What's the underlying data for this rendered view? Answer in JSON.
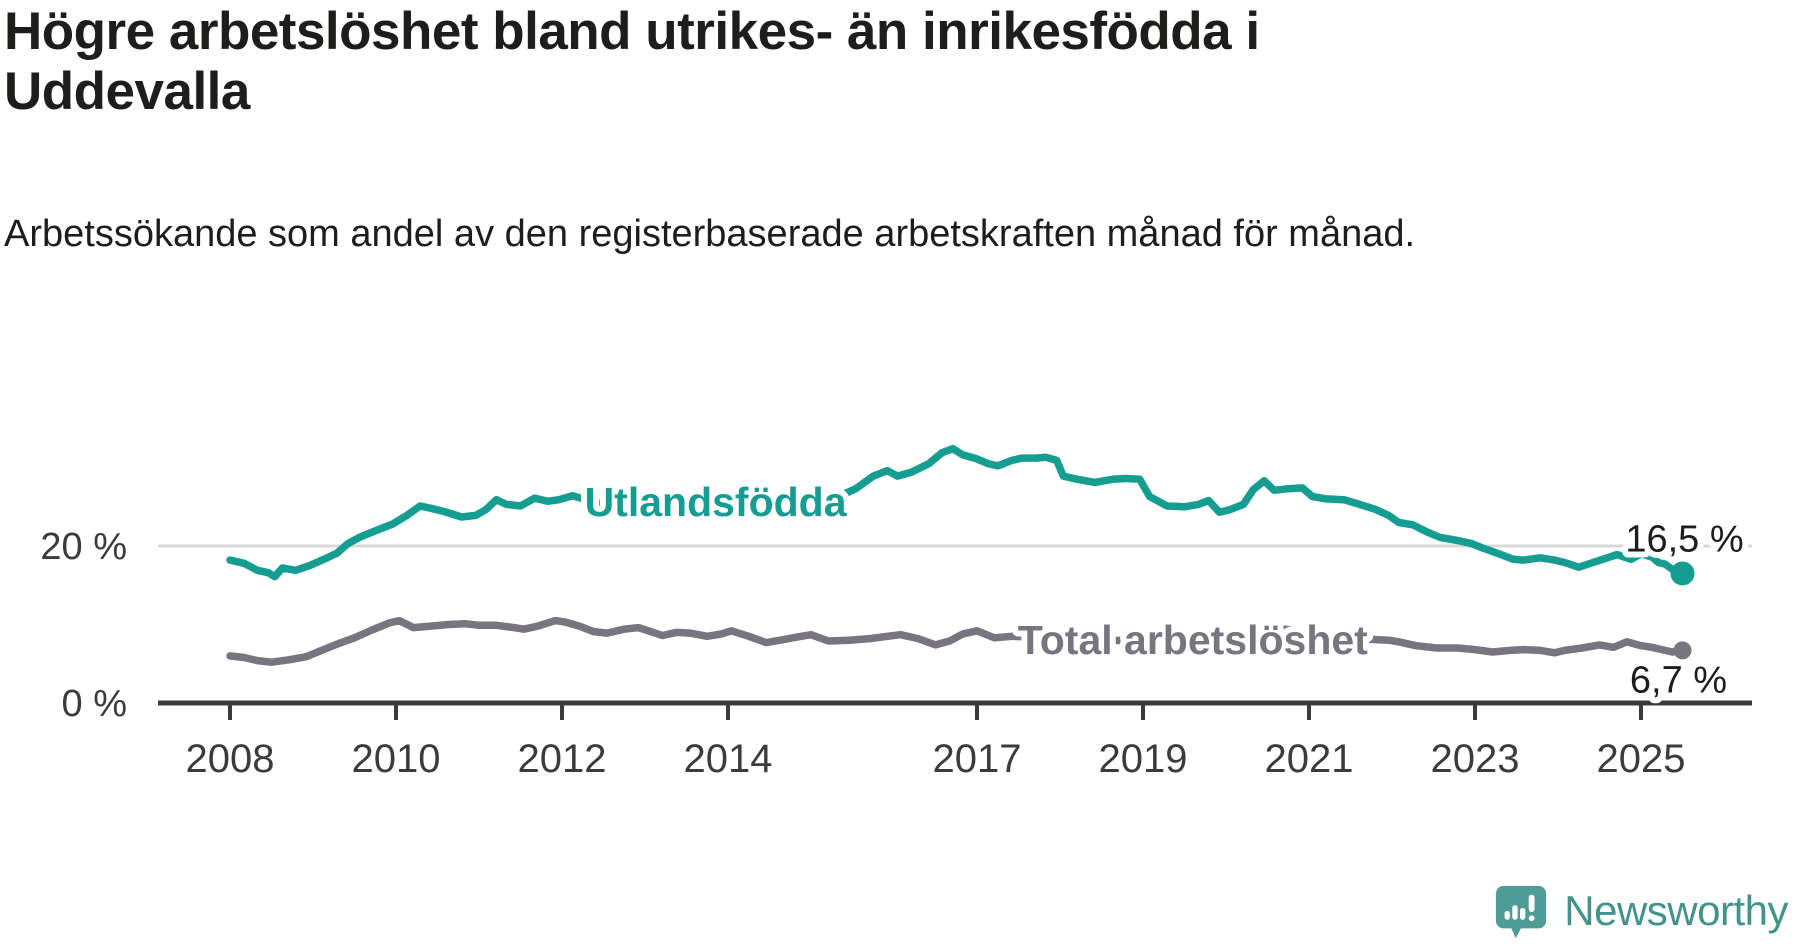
{
  "header": {
    "title": "Högre arbetslöshet bland utrikes- än inrikesfödda i Uddevalla",
    "subtitle": "Arbetssökande som andel av den registerbaserade arbetskraften månad för månad."
  },
  "chart_data": {
    "type": "line",
    "title": "Högre arbetslöshet bland utrikes- än inrikesfödda i Uddevalla",
    "subtitle": "Arbetssökande som andel av den registerbaserade arbetskraften månad för månad.",
    "xlabel": "",
    "ylabel": "",
    "x_unit": "year (monthly observations)",
    "y_unit": "%",
    "xlim": [
      2007.35,
      2026.3
    ],
    "ylim": [
      0,
      34
    ],
    "x_ticks": [
      2008,
      2010,
      2012,
      2014,
      2017,
      2019,
      2021,
      2023,
      2025
    ],
    "y_ticks": [
      {
        "value": 0,
        "label": "0 %"
      },
      {
        "value": 20,
        "label": "20 %"
      }
    ],
    "grid_values": [
      20
    ],
    "legend_position": "inline-labels",
    "series": [
      {
        "name": "Utlandsfödda",
        "color": "#169d92",
        "end_label": "16,5 %",
        "end_value": 16.5,
        "label_at": [
          2013.85,
          25.6
        ],
        "points": [
          [
            2008.0,
            18.2
          ],
          [
            2008.17,
            17.8
          ],
          [
            2008.33,
            16.9
          ],
          [
            2008.46,
            16.6
          ],
          [
            2008.54,
            16.1
          ],
          [
            2008.63,
            17.2
          ],
          [
            2008.79,
            16.9
          ],
          [
            2008.96,
            17.5
          ],
          [
            2009.13,
            18.3
          ],
          [
            2009.29,
            19.1
          ],
          [
            2009.42,
            20.3
          ],
          [
            2009.58,
            21.2
          ],
          [
            2009.79,
            22.1
          ],
          [
            2009.96,
            22.8
          ],
          [
            2010.13,
            23.9
          ],
          [
            2010.29,
            25.1
          ],
          [
            2010.42,
            24.8
          ],
          [
            2010.58,
            24.4
          ],
          [
            2010.79,
            23.7
          ],
          [
            2010.96,
            23.9
          ],
          [
            2011.08,
            24.6
          ],
          [
            2011.21,
            25.9
          ],
          [
            2011.33,
            25.3
          ],
          [
            2011.5,
            25.1
          ],
          [
            2011.67,
            26.1
          ],
          [
            2011.83,
            25.7
          ],
          [
            2011.96,
            25.9
          ],
          [
            2012.13,
            26.4
          ],
          [
            2012.29,
            25.9
          ],
          [
            2012.5,
            25.3
          ],
          [
            2012.71,
            24.9
          ],
          [
            2012.92,
            25.2
          ],
          [
            2013.13,
            24.6
          ],
          [
            2013.29,
            24.9
          ],
          [
            2013.5,
            24.4
          ],
          [
            2013.71,
            24.7
          ],
          [
            2013.92,
            24.2
          ],
          [
            2014.13,
            24.5
          ],
          [
            2014.29,
            23.9
          ],
          [
            2014.5,
            24.2
          ],
          [
            2014.71,
            24.6
          ],
          [
            2014.92,
            25.0
          ],
          [
            2015.08,
            25.4
          ],
          [
            2015.29,
            26.1
          ],
          [
            2015.54,
            27.3
          ],
          [
            2015.75,
            28.9
          ],
          [
            2015.92,
            29.6
          ],
          [
            2016.04,
            28.9
          ],
          [
            2016.21,
            29.4
          ],
          [
            2016.42,
            30.5
          ],
          [
            2016.58,
            31.9
          ],
          [
            2016.71,
            32.4
          ],
          [
            2016.83,
            31.6
          ],
          [
            2017.0,
            31.1
          ],
          [
            2017.13,
            30.5
          ],
          [
            2017.25,
            30.2
          ],
          [
            2017.42,
            30.9
          ],
          [
            2017.54,
            31.2
          ],
          [
            2017.71,
            31.2
          ],
          [
            2017.83,
            31.3
          ],
          [
            2017.96,
            30.9
          ],
          [
            2018.04,
            28.9
          ],
          [
            2018.21,
            28.5
          ],
          [
            2018.42,
            28.1
          ],
          [
            2018.63,
            28.5
          ],
          [
            2018.79,
            28.6
          ],
          [
            2018.96,
            28.5
          ],
          [
            2019.08,
            26.3
          ],
          [
            2019.29,
            25.1
          ],
          [
            2019.5,
            25.0
          ],
          [
            2019.67,
            25.3
          ],
          [
            2019.79,
            25.8
          ],
          [
            2019.92,
            24.3
          ],
          [
            2020.04,
            24.6
          ],
          [
            2020.21,
            25.3
          ],
          [
            2020.33,
            27.2
          ],
          [
            2020.46,
            28.3
          ],
          [
            2020.58,
            27.1
          ],
          [
            2020.75,
            27.3
          ],
          [
            2020.92,
            27.4
          ],
          [
            2021.04,
            26.3
          ],
          [
            2021.21,
            26.0
          ],
          [
            2021.42,
            25.9
          ],
          [
            2021.58,
            25.4
          ],
          [
            2021.79,
            24.7
          ],
          [
            2021.96,
            23.9
          ],
          [
            2022.08,
            23.0
          ],
          [
            2022.25,
            22.7
          ],
          [
            2022.42,
            21.8
          ],
          [
            2022.58,
            21.1
          ],
          [
            2022.79,
            20.7
          ],
          [
            2022.96,
            20.3
          ],
          [
            2023.08,
            19.8
          ],
          [
            2023.29,
            19.0
          ],
          [
            2023.46,
            18.3
          ],
          [
            2023.58,
            18.2
          ],
          [
            2023.79,
            18.5
          ],
          [
            2023.96,
            18.2
          ],
          [
            2024.08,
            17.9
          ],
          [
            2024.25,
            17.3
          ],
          [
            2024.42,
            17.9
          ],
          [
            2024.54,
            18.3
          ],
          [
            2024.71,
            18.9
          ],
          [
            2024.88,
            18.3
          ],
          [
            2025.0,
            19.0
          ],
          [
            2025.13,
            18.6
          ],
          [
            2025.21,
            17.9
          ],
          [
            2025.29,
            17.7
          ],
          [
            2025.38,
            17.0
          ],
          [
            2025.5,
            16.5
          ]
        ]
      },
      {
        "name": "Total arbetslöshet",
        "color": "#787480",
        "end_label": "6,7 %",
        "end_value": 6.7,
        "label_at": [
          2019.6,
          8.0
        ],
        "points": [
          [
            2008.0,
            6.0
          ],
          [
            2008.17,
            5.8
          ],
          [
            2008.33,
            5.4
          ],
          [
            2008.5,
            5.2
          ],
          [
            2008.71,
            5.5
          ],
          [
            2008.92,
            5.9
          ],
          [
            2009.08,
            6.6
          ],
          [
            2009.29,
            7.5
          ],
          [
            2009.5,
            8.3
          ],
          [
            2009.71,
            9.3
          ],
          [
            2009.92,
            10.2
          ],
          [
            2010.04,
            10.5
          ],
          [
            2010.21,
            9.6
          ],
          [
            2010.42,
            9.8
          ],
          [
            2010.63,
            10.0
          ],
          [
            2010.83,
            10.1
          ],
          [
            2011.0,
            9.9
          ],
          [
            2011.21,
            9.9
          ],
          [
            2011.42,
            9.6
          ],
          [
            2011.54,
            9.4
          ],
          [
            2011.71,
            9.8
          ],
          [
            2011.92,
            10.5
          ],
          [
            2012.04,
            10.3
          ],
          [
            2012.21,
            9.8
          ],
          [
            2012.38,
            9.1
          ],
          [
            2012.54,
            8.9
          ],
          [
            2012.75,
            9.4
          ],
          [
            2012.92,
            9.6
          ],
          [
            2013.04,
            9.2
          ],
          [
            2013.21,
            8.6
          ],
          [
            2013.38,
            9.0
          ],
          [
            2013.54,
            8.9
          ],
          [
            2013.75,
            8.5
          ],
          [
            2013.92,
            8.8
          ],
          [
            2014.04,
            9.2
          ],
          [
            2014.25,
            8.5
          ],
          [
            2014.46,
            7.7
          ],
          [
            2014.63,
            8.0
          ],
          [
            2014.83,
            8.4
          ],
          [
            2015.0,
            8.7
          ],
          [
            2015.21,
            7.9
          ],
          [
            2015.46,
            8.0
          ],
          [
            2015.71,
            8.2
          ],
          [
            2015.92,
            8.5
          ],
          [
            2016.08,
            8.7
          ],
          [
            2016.29,
            8.2
          ],
          [
            2016.5,
            7.4
          ],
          [
            2016.67,
            7.9
          ],
          [
            2016.83,
            8.8
          ],
          [
            2017.0,
            9.2
          ],
          [
            2017.21,
            8.3
          ],
          [
            2017.42,
            8.5
          ],
          [
            2017.71,
            8.4
          ],
          [
            2017.96,
            8.2
          ],
          [
            2018.21,
            8.1
          ],
          [
            2018.5,
            7.9
          ],
          [
            2018.79,
            8.0
          ],
          [
            2019.08,
            8.2
          ],
          [
            2019.38,
            8.3
          ],
          [
            2019.71,
            8.5
          ],
          [
            2019.96,
            8.6
          ],
          [
            2020.21,
            9.0
          ],
          [
            2020.46,
            9.6
          ],
          [
            2020.71,
            9.4
          ],
          [
            2020.96,
            9.1
          ],
          [
            2021.21,
            8.8
          ],
          [
            2021.5,
            8.4
          ],
          [
            2021.75,
            8.1
          ],
          [
            2021.96,
            8.0
          ],
          [
            2022.08,
            7.8
          ],
          [
            2022.29,
            7.3
          ],
          [
            2022.54,
            7.0
          ],
          [
            2022.79,
            7.0
          ],
          [
            2023.0,
            6.8
          ],
          [
            2023.21,
            6.5
          ],
          [
            2023.42,
            6.7
          ],
          [
            2023.58,
            6.8
          ],
          [
            2023.79,
            6.7
          ],
          [
            2023.96,
            6.4
          ],
          [
            2024.08,
            6.7
          ],
          [
            2024.29,
            7.0
          ],
          [
            2024.5,
            7.4
          ],
          [
            2024.67,
            7.1
          ],
          [
            2024.83,
            7.8
          ],
          [
            2025.0,
            7.3
          ],
          [
            2025.13,
            7.1
          ],
          [
            2025.25,
            6.8
          ],
          [
            2025.38,
            6.5
          ],
          [
            2025.5,
            6.7
          ]
        ]
      }
    ]
  },
  "colors": {
    "accent_teal": "#169d92",
    "series_gray": "#787480",
    "axis": "#3b3b3b",
    "grid": "#d8d8d8",
    "text": "#1d1d1b",
    "brand": "#41938c",
    "brand_icon": "#4d9d96"
  },
  "branding": {
    "name": "Newsworthy"
  }
}
